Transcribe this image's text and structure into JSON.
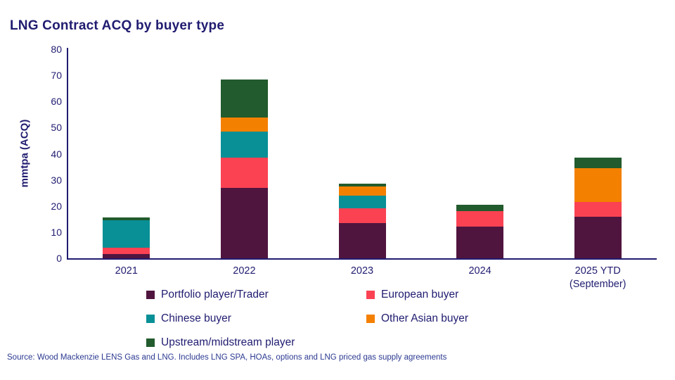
{
  "title": "LNG Contract ACQ by buyer type",
  "source": "Source: Wood Mackenzie LENS Gas and LNG. Includes LNG SPA, HOAs, options and LNG priced gas supply agreements",
  "colors": {
    "navy": "#201C70",
    "source_text": "#2B3990",
    "portfolio": "#50153F",
    "european": "#FA4253",
    "chinese": "#089096",
    "other_asian": "#F48000",
    "upstream": "#225B2D"
  },
  "chart_data": {
    "type": "bar",
    "stacked": true,
    "title": "LNG Contract ACQ by buyer type",
    "xlabel": "",
    "ylabel": "mmtpa (ACQ)",
    "ylim": [
      0,
      80
    ],
    "yticks": [
      0,
      10,
      20,
      30,
      40,
      50,
      60,
      70,
      80
    ],
    "grid": false,
    "legend_position": "bottom",
    "categories": [
      "2021",
      "2022",
      "2023",
      "2024",
      "2025 YTD"
    ],
    "category_sublabels": [
      "",
      "",
      "",
      "",
      "(September)"
    ],
    "series": [
      {
        "name": "Portfolio player/Trader",
        "color": "#50153F",
        "values": [
          1.5,
          27,
          13.5,
          12,
          16
        ]
      },
      {
        "name": "European buyer",
        "color": "#FA4253",
        "values": [
          2.5,
          11.5,
          5.5,
          6,
          5.5
        ]
      },
      {
        "name": "Chinese buyer",
        "color": "#089096",
        "values": [
          10.5,
          10,
          5,
          0,
          0
        ]
      },
      {
        "name": "Other Asian buyer",
        "color": "#F48000",
        "values": [
          0,
          5.5,
          3.5,
          0,
          13
        ]
      },
      {
        "name": "Upstream/midstream player",
        "color": "#225B2D",
        "values": [
          1,
          14.5,
          1,
          2.5,
          4
        ]
      }
    ],
    "totals": [
      15.5,
      68.5,
      28.5,
      20.5,
      38.5
    ]
  }
}
